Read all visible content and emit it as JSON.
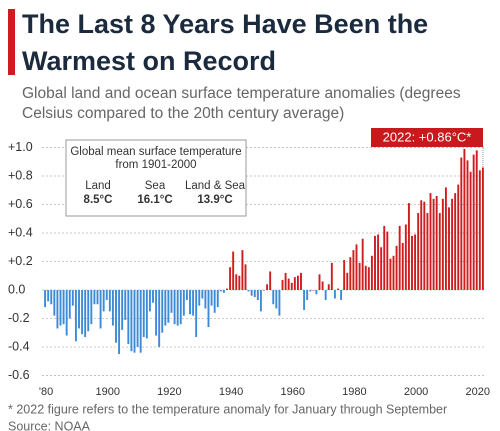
{
  "chart_data": {
    "type": "bar",
    "title": "The Last 8 Years Have Been the Warmest on Record",
    "subtitle": "Global land and ocean surface temperature anomalies (degrees Celsius compared to the 20th century average)",
    "annotation": "2022: +0.86°C*",
    "inset": {
      "title": "Global mean surface temperature from 1901-2000",
      "items": [
        {
          "label": "Land",
          "value": "8.5°C"
        },
        {
          "label": "Sea",
          "value": "16.1°C"
        },
        {
          "label": "Land & Sea",
          "value": "13.9°C"
        }
      ]
    },
    "footnote": "* 2022 figure refers to the temperature anomaly for January through September",
    "source": "Source: NOAA",
    "x": [
      1880,
      1881,
      1882,
      1883,
      1884,
      1885,
      1886,
      1887,
      1888,
      1889,
      1890,
      1891,
      1892,
      1893,
      1894,
      1895,
      1896,
      1897,
      1898,
      1899,
      1900,
      1901,
      1902,
      1903,
      1904,
      1905,
      1906,
      1907,
      1908,
      1909,
      1910,
      1911,
      1912,
      1913,
      1914,
      1915,
      1916,
      1917,
      1918,
      1919,
      1920,
      1921,
      1922,
      1923,
      1924,
      1925,
      1926,
      1927,
      1928,
      1929,
      1930,
      1931,
      1932,
      1933,
      1934,
      1935,
      1936,
      1937,
      1938,
      1939,
      1940,
      1941,
      1942,
      1943,
      1944,
      1945,
      1946,
      1947,
      1948,
      1949,
      1950,
      1951,
      1952,
      1953,
      1954,
      1955,
      1956,
      1957,
      1958,
      1959,
      1960,
      1961,
      1962,
      1963,
      1964,
      1965,
      1966,
      1967,
      1968,
      1969,
      1970,
      1971,
      1972,
      1973,
      1974,
      1975,
      1976,
      1977,
      1978,
      1979,
      1980,
      1981,
      1982,
      1983,
      1984,
      1985,
      1986,
      1987,
      1988,
      1989,
      1990,
      1991,
      1992,
      1993,
      1994,
      1995,
      1996,
      1997,
      1998,
      1999,
      2000,
      2001,
      2002,
      2003,
      2004,
      2005,
      2006,
      2007,
      2008,
      2009,
      2010,
      2011,
      2012,
      2013,
      2014,
      2015,
      2016,
      2017,
      2018,
      2019,
      2020,
      2021,
      2022
    ],
    "values": [
      -0.12,
      -0.08,
      -0.1,
      -0.18,
      -0.27,
      -0.25,
      -0.24,
      -0.32,
      -0.2,
      -0.11,
      -0.36,
      -0.27,
      -0.31,
      -0.33,
      -0.29,
      -0.24,
      -0.1,
      -0.1,
      -0.27,
      -0.15,
      -0.07,
      -0.15,
      -0.25,
      -0.37,
      -0.45,
      -0.28,
      -0.21,
      -0.38,
      -0.43,
      -0.44,
      -0.4,
      -0.44,
      -0.33,
      -0.34,
      -0.15,
      -0.09,
      -0.32,
      -0.4,
      -0.3,
      -0.25,
      -0.23,
      -0.16,
      -0.24,
      -0.25,
      -0.24,
      -0.18,
      -0.07,
      -0.17,
      -0.18,
      -0.33,
      -0.11,
      -0.06,
      -0.13,
      -0.26,
      -0.11,
      -0.16,
      -0.12,
      -0.01,
      -0.02,
      0.01,
      0.16,
      0.27,
      0.11,
      0.1,
      0.28,
      0.18,
      -0.01,
      -0.04,
      -0.05,
      -0.07,
      -0.15,
      0.0,
      0.04,
      0.13,
      -0.1,
      -0.13,
      -0.18,
      0.07,
      0.12,
      0.08,
      0.05,
      0.09,
      0.1,
      0.12,
      -0.14,
      -0.07,
      -0.01,
      0.0,
      -0.03,
      0.11,
      0.06,
      -0.07,
      0.04,
      0.19,
      -0.06,
      0.01,
      -0.07,
      0.21,
      0.12,
      0.23,
      0.28,
      0.32,
      0.19,
      0.36,
      0.17,
      0.16,
      0.24,
      0.38,
      0.39,
      0.3,
      0.45,
      0.41,
      0.22,
      0.24,
      0.31,
      0.45,
      0.33,
      0.46,
      0.61,
      0.38,
      0.39,
      0.54,
      0.63,
      0.62,
      0.54,
      0.68,
      0.64,
      0.66,
      0.54,
      0.64,
      0.72,
      0.58,
      0.64,
      0.68,
      0.74,
      0.93,
      0.99,
      0.91,
      0.83,
      0.95,
      0.98,
      0.84,
      0.86
    ],
    "color_positive": "#cf1d1f",
    "color_negative": "#3b8bd8",
    "xlim": [
      1879,
      2023
    ],
    "xticks": [
      {
        "value": 1880,
        "label": "'80"
      },
      1900,
      1920,
      1940,
      1960,
      1980,
      2000,
      2020
    ],
    "ylim": [
      -0.66,
      1.06
    ],
    "yticks": [
      {
        "value": 1.0,
        "label": "+1.0"
      },
      {
        "value": 0.8,
        "label": "+0.8"
      },
      {
        "value": 0.6,
        "label": "+0.6"
      },
      {
        "value": 0.4,
        "label": "+0.4"
      },
      {
        "value": 0.2,
        "label": "+0.2"
      },
      {
        "value": 0.0,
        "label": "0.0"
      },
      {
        "value": -0.2,
        "label": "-0.2"
      },
      {
        "value": -0.4,
        "label": "-0.4"
      },
      {
        "value": -0.6,
        "label": "-0.6"
      }
    ],
    "grid": true
  }
}
